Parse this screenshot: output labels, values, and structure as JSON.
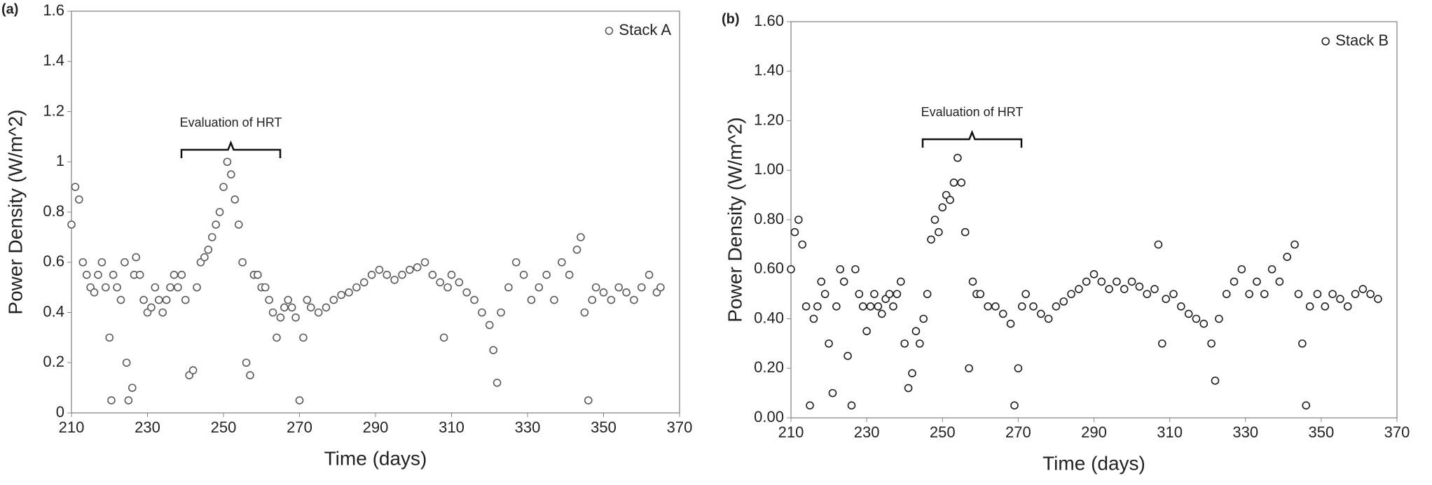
{
  "chart_data": [
    {
      "type": "scatter",
      "panel_label": "(a)",
      "xlabel": "Time (days)",
      "ylabel": "Power Density (W/m^2)",
      "annotation": "Evaluation of HRT",
      "legend": "upper right",
      "xlim": [
        210,
        370
      ],
      "xticks": [
        210,
        230,
        250,
        270,
        290,
        310,
        330,
        350,
        370
      ],
      "ylim": [
        0,
        1.6
      ],
      "yticks": [
        0,
        0.2,
        0.4,
        0.6,
        0.8,
        1,
        1.2,
        1.4,
        1.6
      ],
      "series": [
        {
          "name": "Stack A",
          "color": "#5a5a5a",
          "x": [
            210,
            211,
            212,
            213,
            214,
            215,
            216,
            217,
            218,
            219,
            220,
            220.5,
            221,
            222,
            223,
            224,
            224.5,
            225,
            226,
            226.5,
            227,
            228,
            229,
            230,
            231,
            232,
            233,
            234,
            235,
            236,
            237,
            238,
            239,
            240,
            241,
            242,
            243,
            244,
            245,
            246,
            247,
            248,
            249,
            250,
            251,
            252,
            253,
            254,
            255,
            256,
            257,
            258,
            259,
            260,
            261,
            262,
            263,
            264,
            265,
            266,
            267,
            268,
            269,
            270,
            271,
            272,
            273,
            275,
            277,
            279,
            281,
            283,
            285,
            287,
            289,
            291,
            293,
            295,
            297,
            299,
            301,
            303,
            305,
            307,
            308,
            309,
            310,
            312,
            314,
            316,
            318,
            320,
            321,
            322,
            323,
            325,
            327,
            329,
            331,
            333,
            335,
            337,
            339,
            341,
            343,
            344,
            345,
            346,
            347,
            348,
            350,
            352,
            354,
            356,
            358,
            360,
            362,
            364,
            365
          ],
          "values": [
            0.75,
            0.9,
            0.85,
            0.6,
            0.55,
            0.5,
            0.48,
            0.55,
            0.6,
            0.5,
            0.3,
            0.05,
            0.55,
            0.5,
            0.45,
            0.6,
            0.2,
            0.05,
            0.1,
            0.55,
            0.62,
            0.55,
            0.45,
            0.4,
            0.42,
            0.5,
            0.45,
            0.4,
            0.45,
            0.5,
            0.55,
            0.5,
            0.55,
            0.45,
            0.15,
            0.17,
            0.5,
            0.6,
            0.62,
            0.65,
            0.7,
            0.75,
            0.8,
            0.9,
            1.0,
            0.95,
            0.85,
            0.75,
            0.6,
            0.2,
            0.15,
            0.55,
            0.55,
            0.5,
            0.5,
            0.45,
            0.4,
            0.3,
            0.38,
            0.42,
            0.45,
            0.42,
            0.38,
            0.05,
            0.3,
            0.45,
            0.42,
            0.4,
            0.42,
            0.45,
            0.47,
            0.48,
            0.5,
            0.52,
            0.55,
            0.57,
            0.55,
            0.53,
            0.55,
            0.57,
            0.58,
            0.6,
            0.55,
            0.52,
            0.3,
            0.5,
            0.55,
            0.52,
            0.48,
            0.45,
            0.4,
            0.35,
            0.25,
            0.12,
            0.4,
            0.5,
            0.6,
            0.55,
            0.45,
            0.5,
            0.55,
            0.45,
            0.6,
            0.55,
            0.65,
            0.7,
            0.4,
            0.05,
            0.45,
            0.5,
            0.48,
            0.45,
            0.5,
            0.48,
            0.45,
            0.5,
            0.55,
            0.48,
            0.5
          ]
        }
      ]
    },
    {
      "type": "scatter",
      "panel_label": "(b)",
      "xlabel": "Time (days)",
      "ylabel": "Power Density (W/m^2)",
      "annotation": "Evaluation of HRT",
      "legend": "upper right",
      "xlim": [
        210,
        370
      ],
      "xticks": [
        210,
        230,
        250,
        270,
        290,
        310,
        330,
        350,
        370
      ],
      "ylim": [
        0,
        1.6
      ],
      "yticks": [
        {
          "value": 0,
          "label": "0.00"
        },
        {
          "value": 0.2,
          "label": "0.20"
        },
        {
          "value": 0.4,
          "label": "0.40"
        },
        {
          "value": 0.6,
          "label": "0.60"
        },
        {
          "value": 0.8,
          "label": "0.80"
        },
        {
          "value": 1,
          "label": "1.00"
        },
        {
          "value": 1.2,
          "label": "1.20"
        },
        {
          "value": 1.4,
          "label": "1.40"
        },
        {
          "value": 1.6,
          "label": "1.60"
        }
      ],
      "series": [
        {
          "name": "Stack B",
          "color": "#1e1e1e",
          "x": [
            210,
            211,
            212,
            213,
            214,
            215,
            216,
            217,
            218,
            219,
            220,
            221,
            222,
            223,
            224,
            225,
            226,
            227,
            228,
            229,
            230,
            231,
            232,
            233,
            234,
            235,
            236,
            237,
            238,
            239,
            240,
            241,
            242,
            243,
            244,
            245,
            246,
            247,
            248,
            249,
            250,
            251,
            252,
            253,
            254,
            255,
            256,
            257,
            258,
            259,
            260,
            262,
            264,
            266,
            268,
            269,
            270,
            271,
            272,
            274,
            276,
            278,
            280,
            282,
            284,
            286,
            288,
            290,
            292,
            294,
            296,
            298,
            300,
            302,
            304,
            306,
            307,
            308,
            309,
            311,
            313,
            315,
            317,
            319,
            321,
            322,
            323,
            325,
            327,
            329,
            331,
            333,
            335,
            337,
            339,
            341,
            343,
            344,
            345,
            346,
            347,
            349,
            351,
            353,
            355,
            357,
            359,
            361,
            363,
            365
          ],
          "values": [
            0.6,
            0.75,
            0.8,
            0.7,
            0.45,
            0.05,
            0.4,
            0.45,
            0.55,
            0.5,
            0.3,
            0.1,
            0.45,
            0.6,
            0.55,
            0.25,
            0.05,
            0.6,
            0.5,
            0.45,
            0.35,
            0.45,
            0.5,
            0.45,
            0.42,
            0.48,
            0.5,
            0.45,
            0.5,
            0.55,
            0.3,
            0.12,
            0.18,
            0.35,
            0.3,
            0.4,
            0.5,
            0.72,
            0.8,
            0.75,
            0.85,
            0.9,
            0.88,
            0.95,
            1.05,
            0.95,
            0.75,
            0.2,
            0.55,
            0.5,
            0.5,
            0.45,
            0.45,
            0.42,
            0.38,
            0.05,
            0.2,
            0.45,
            0.5,
            0.45,
            0.42,
            0.4,
            0.45,
            0.47,
            0.5,
            0.52,
            0.55,
            0.58,
            0.55,
            0.52,
            0.55,
            0.52,
            0.55,
            0.53,
            0.5,
            0.52,
            0.7,
            0.3,
            0.48,
            0.5,
            0.45,
            0.42,
            0.4,
            0.38,
            0.3,
            0.15,
            0.4,
            0.5,
            0.55,
            0.6,
            0.5,
            0.55,
            0.5,
            0.6,
            0.55,
            0.65,
            0.7,
            0.5,
            0.3,
            0.05,
            0.45,
            0.5,
            0.45,
            0.5,
            0.48,
            0.45,
            0.5,
            0.52,
            0.5,
            0.48
          ]
        }
      ]
    }
  ]
}
